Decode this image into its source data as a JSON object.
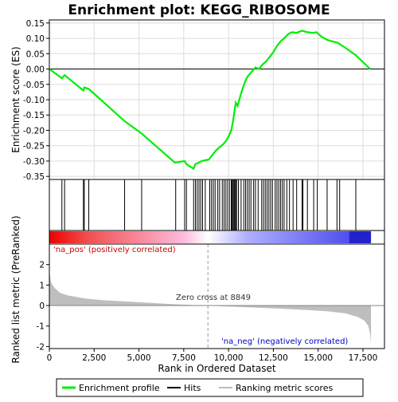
{
  "chart_data": {
    "type": "line",
    "title": "Enrichment plot: KEGG_RIBOSOME",
    "colors": {
      "enrichment_line": "#00ee00",
      "hits": "#000000",
      "metric_fill": "#bebebe",
      "pos_text": "#cc0000",
      "neg_text": "#0000cc",
      "grid": "#dddddd",
      "zero_cross_line": "#999999"
    },
    "top_panel": {
      "ylabel": "Enrichment score (ES)",
      "ylim": [
        -0.36,
        0.16
      ],
      "yticks": [
        0.15,
        0.1,
        0.05,
        0.0,
        -0.05,
        -0.1,
        -0.15,
        -0.2,
        -0.25,
        -0.3,
        -0.35
      ],
      "ytick_labels": [
        "0.15",
        "0.10",
        "0.05",
        "0.00",
        "-0.05",
        "-0.10",
        "-0.15",
        "-0.20",
        "-0.25",
        "-0.30",
        "-0.35"
      ],
      "series": [
        {
          "name": "Enrichment profile",
          "x": [
            0,
            700,
            850,
            1900,
            1950,
            2200,
            4200,
            5150,
            7000,
            7550,
            7650,
            8050,
            8150,
            8350,
            8500,
            8900,
            9100,
            9300,
            9500,
            9700,
            9850,
            10000,
            10150,
            10250,
            10350,
            10400,
            10500,
            10600,
            10750,
            10900,
            11050,
            11200,
            11350,
            11500,
            11700,
            11900,
            12100,
            12300,
            12500,
            12700,
            12900,
            13100,
            13350,
            13550,
            13800,
            14100,
            14400,
            14700,
            14900,
            15200,
            15500,
            15800,
            16100,
            16500,
            17100,
            17900
          ],
          "y": [
            0.0,
            -0.03,
            -0.02,
            -0.07,
            -0.06,
            -0.065,
            -0.17,
            -0.21,
            -0.305,
            -0.3,
            -0.31,
            -0.325,
            -0.31,
            -0.305,
            -0.3,
            -0.295,
            -0.28,
            -0.265,
            -0.255,
            -0.245,
            -0.235,
            -0.22,
            -0.2,
            -0.17,
            -0.13,
            -0.11,
            -0.12,
            -0.1,
            -0.07,
            -0.045,
            -0.025,
            -0.015,
            -0.005,
            0.005,
            0.0,
            0.015,
            0.025,
            0.04,
            0.055,
            0.075,
            0.09,
            0.1,
            0.115,
            0.12,
            0.118,
            0.125,
            0.12,
            0.118,
            0.12,
            0.105,
            0.095,
            0.09,
            0.085,
            0.07,
            0.045,
            0.0
          ]
        }
      ]
    },
    "hits_panel": {
      "hit_positions": [
        700,
        850,
        1900,
        1950,
        2200,
        4200,
        5150,
        7050,
        7550,
        7650,
        8050,
        8150,
        8250,
        8350,
        8450,
        8550,
        8700,
        8950,
        9050,
        9150,
        9250,
        9400,
        9500,
        9650,
        9750,
        9850,
        9950,
        10050,
        10150,
        10200,
        10250,
        10300,
        10350,
        10400,
        10450,
        10550,
        10700,
        10850,
        10950,
        11050,
        11150,
        11250,
        11400,
        11500,
        11650,
        11850,
        11950,
        12050,
        12150,
        12250,
        12350,
        12450,
        12600,
        12700,
        12800,
        12900,
        13000,
        13100,
        13250,
        13400,
        13600,
        13800,
        14100,
        14150,
        14400,
        14750,
        14950,
        15500,
        16050,
        16200,
        17100
      ]
    },
    "bottom_panel": {
      "ylabel": "Ranked list metric (PreRanked)",
      "xlabel": "Rank in Ordered Dataset",
      "ylim": [
        -2.1,
        3.0
      ],
      "yticks": [
        2,
        1,
        0,
        -1,
        -2
      ],
      "ytick_labels": [
        "2",
        "1",
        "0",
        "-1",
        "-2"
      ],
      "xlim": [
        0,
        18700
      ],
      "xticks": [
        0,
        2500,
        5000,
        7500,
        10000,
        12500,
        15000,
        17500
      ],
      "xtick_labels": [
        "0",
        "2,500",
        "5,000",
        "7,500",
        "10,000",
        "12,500",
        "15,000",
        "17,500"
      ],
      "metric_curve": {
        "x": [
          0,
          100,
          300,
          600,
          1000,
          2000,
          3000,
          5000,
          7000,
          8849,
          10000,
          12000,
          14000,
          15500,
          16500,
          17200,
          17600,
          17800,
          17900,
          17950
        ],
        "y": [
          1.65,
          1.1,
          0.85,
          0.62,
          0.5,
          0.34,
          0.26,
          0.16,
          0.06,
          0.0,
          -0.05,
          -0.12,
          -0.2,
          -0.28,
          -0.38,
          -0.55,
          -0.75,
          -1.0,
          -1.4,
          -1.85
        ]
      },
      "zero_cross_label": "Zero cross at 8849",
      "zero_cross_x": 8849,
      "pos_label": "'na_pos' (positively correlated)",
      "neg_label": "'na_neg' (negatively correlated)"
    },
    "legend": {
      "placement": "bottom",
      "items": [
        "Enrichment profile",
        "Hits",
        "Ranking metric scores"
      ]
    }
  }
}
